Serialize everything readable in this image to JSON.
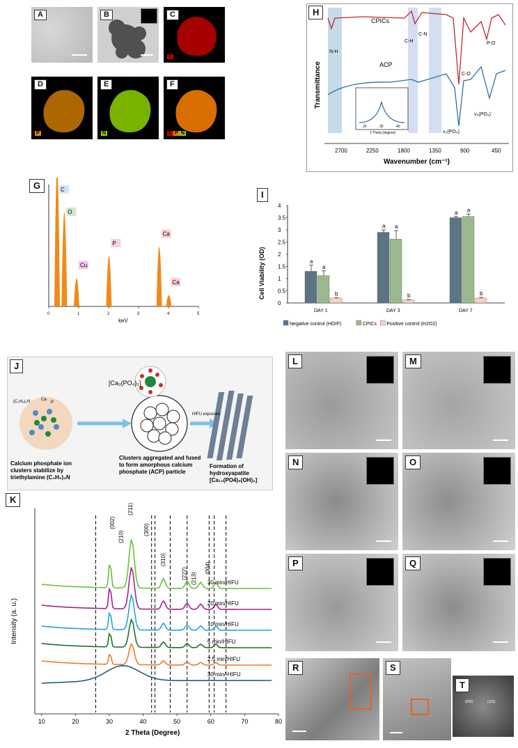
{
  "panels": {
    "A": "A",
    "B": "B",
    "C": "C",
    "D": "D",
    "E": "E",
    "F": "F",
    "G": "G",
    "H": "H",
    "I": "I",
    "J": "J",
    "K": "K",
    "L": "L",
    "M": "M",
    "N": "N",
    "O": "O",
    "P": "P",
    "Q": "Q",
    "R": "R",
    "S": "S",
    "T": "T"
  },
  "map_elements": {
    "C": "C",
    "D": "P",
    "E": "N",
    "F": [
      "C",
      "P",
      "N"
    ]
  },
  "colors": {
    "C": "#d40000",
    "D": "#e68a00",
    "E": "#8fd100",
    "F": "#f07a00"
  },
  "ftir": {
    "cpics_label": "CPICs",
    "acp_label": "ACP",
    "ylabel": "Transmittance",
    "xlabel": "Wavenumber (cm⁻¹)",
    "peaks": {
      "nh": "N-H",
      "ch": "C-H",
      "cn": "C-N",
      "po": "P-O",
      "co": "C-O",
      "v4": "v₄(PO₄)",
      "v3": "v₃(PO₄)"
    },
    "inset_xlabel": "2 Theta (degree)",
    "inset_ticks": [
      "20",
      "30",
      "40"
    ],
    "x_ticks": [
      "2700",
      "2250",
      "1800",
      "1350",
      "900",
      "450"
    ]
  },
  "chart_data": [
    {
      "type": "bar",
      "title": "",
      "xlabel": "keV",
      "ylabel": "",
      "x_ticks": [
        "0",
        "1",
        "2",
        "3",
        "4",
        "5"
      ],
      "peaks": [
        {
          "label": "C",
          "kev": 0.28
        },
        {
          "label": "O",
          "kev": 0.52
        },
        {
          "label": "Cu",
          "kev": 0.93
        },
        {
          "label": "P",
          "kev": 2.01
        },
        {
          "label": "Ca",
          "kev": 3.69
        },
        {
          "label": "Ca",
          "kev": 4.01
        }
      ]
    },
    {
      "type": "bar",
      "title": "",
      "ylabel": "Cell Viability (OD)",
      "ylim": [
        0,
        4
      ],
      "y_ticks": [
        "0",
        "0.5",
        "1",
        "1.5",
        "2",
        "2.5",
        "3",
        "3.5",
        "4"
      ],
      "categories": [
        "DAY 1",
        "DAY 3",
        "DAY 7"
      ],
      "series": [
        {
          "name": "Negative control (HOrF)",
          "color": "#5c7585",
          "values": [
            1.3,
            2.9,
            3.5
          ],
          "errors": [
            0.25,
            0.1,
            0.05
          ],
          "sig": [
            "a",
            "a",
            "a"
          ]
        },
        {
          "name": "CPICs",
          "color": "#9cb98e",
          "values": [
            1.12,
            2.62,
            3.55
          ],
          "errors": [
            0.2,
            0.35,
            0.1
          ],
          "sig": [
            "a",
            "a",
            "a"
          ]
        },
        {
          "name": "Positive control (H2O2)",
          "color": "#f3d3c4",
          "values": [
            0.2,
            0.12,
            0.2
          ],
          "errors": [
            0.02,
            0.02,
            0.03
          ],
          "sig": [
            "b",
            "b",
            "b"
          ]
        }
      ]
    },
    {
      "type": "line",
      "title": "",
      "xlabel": "2 Theta (Degree)",
      "ylabel": "Intensity (a. u.)",
      "xlim": [
        8,
        80
      ],
      "x_ticks": [
        "10",
        "20",
        "30",
        "40",
        "50",
        "60",
        "70",
        "80"
      ],
      "hkl": [
        "(002)",
        "(210)",
        "(211)",
        "(300)",
        "(310)",
        "(222)",
        "(213)",
        "(004)"
      ],
      "series": [
        {
          "name": "30 min/HIFU",
          "color": "#6abf3c"
        },
        {
          "name": "20 min/HIFU",
          "color": "#a0228a"
        },
        {
          "name": "10 min/HIFU",
          "color": "#1fa3dc"
        },
        {
          "name": "5 min/HIFU",
          "color": "#1f6e2e"
        },
        {
          "name": "2.5 min/HIFU",
          "color": "#f07a28"
        },
        {
          "name": "30 min/-HIFU",
          "color": "#1f5f7a"
        }
      ]
    }
  ],
  "schematic": {
    "formula_top": "[Ca₃(PO₄)₂]",
    "tea": "(C₂H₅)₃N",
    "ca": "Ca",
    "p": "P",
    "hifu": "HIFU exposure",
    "cap1": "Calcium phosphate ion clusters stabilize by triethylamine (C₂H₅)₃N",
    "cap2": "Clusters aggregated and fused to form amorphous calcium phosphate (ACP) particle",
    "cap3": "Formation of hydroxyapatite [Ca₁₀(PO4)₆(OH)₂]"
  },
  "fft": {
    "a": "(002)",
    "b": "(112)"
  }
}
